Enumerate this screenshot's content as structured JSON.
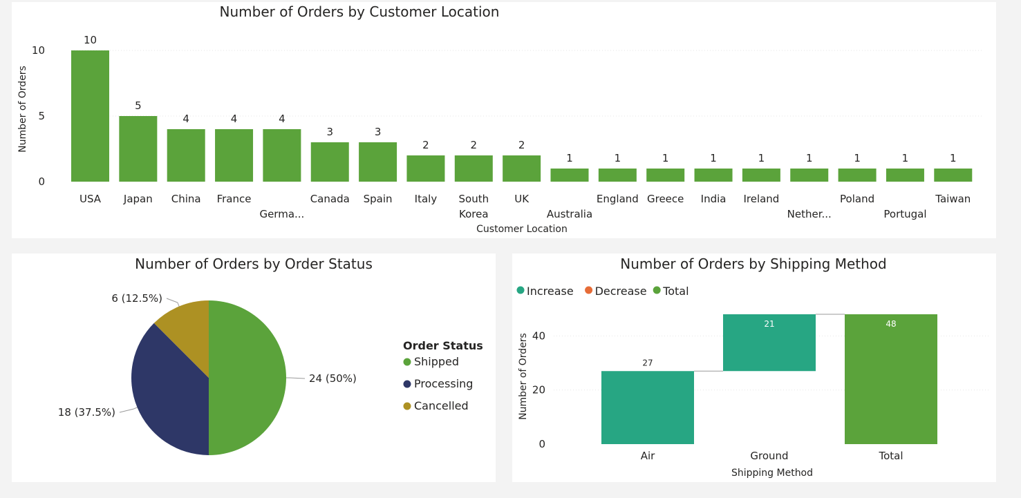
{
  "colors": {
    "bar": "#5ba33b",
    "shipped": "#5ba33b",
    "processing": "#2e3767",
    "cancelled": "#ad9123",
    "increase": "#27a683",
    "decrease": "#e66c37",
    "total": "#5ba33b",
    "connector": "#999999"
  },
  "chart_data": [
    {
      "type": "bar",
      "title": "Number of Orders by Customer Location",
      "xlabel": "Customer Location",
      "ylabel": "Number of Orders",
      "ylim": [
        0,
        10
      ],
      "yticks": [
        0,
        5,
        10
      ],
      "grid": true,
      "categories": [
        "USA",
        "Japan",
        "China",
        "France",
        "Germa...",
        "Canada",
        "Spain",
        "Italy",
        "South Korea",
        "UK",
        "Australia",
        "England",
        "Greece",
        "India",
        "Ireland",
        "Nether...",
        "Poland",
        "Portugal",
        "Taiwan"
      ],
      "values": [
        10,
        5,
        4,
        4,
        4,
        3,
        3,
        2,
        2,
        2,
        1,
        1,
        1,
        1,
        1,
        1,
        1,
        1,
        1
      ],
      "value_labels": [
        "10",
        "5",
        "4",
        "4",
        "4",
        "3",
        "3",
        "2",
        "2",
        "2",
        "1",
        "1",
        "1",
        "1",
        "1",
        "1",
        "1",
        "1",
        "1"
      ]
    },
    {
      "type": "pie",
      "title": "Number of Orders by Order Status",
      "legend_title": "Order Status",
      "legend_position": "right",
      "slices": [
        {
          "name": "Shipped",
          "value": 24,
          "label": "24 (50%)",
          "color": "#5ba33b"
        },
        {
          "name": "Processing",
          "value": 18,
          "label": "18 (37.5%)",
          "color": "#2e3767"
        },
        {
          "name": "Cancelled",
          "value": 6,
          "label": "6 (12.5%)",
          "color": "#ad9123"
        }
      ]
    },
    {
      "type": "waterfall",
      "title": "Number of Orders by Shipping Method",
      "xlabel": "Shipping Method",
      "ylabel": "Number of Orders",
      "ylim": [
        0,
        48
      ],
      "yticks": [
        0,
        20,
        40
      ],
      "legend_position": "top-left",
      "legend": [
        {
          "name": "Increase",
          "color": "#27a683"
        },
        {
          "name": "Decrease",
          "color": "#e66c37"
        },
        {
          "name": "Total",
          "color": "#5ba33b"
        }
      ],
      "categories": [
        "Air",
        "Ground",
        "Total"
      ],
      "values": [
        27,
        21,
        48
      ],
      "kinds": [
        "increase",
        "increase",
        "total"
      ],
      "value_labels": [
        "27",
        "21",
        "48"
      ]
    }
  ]
}
